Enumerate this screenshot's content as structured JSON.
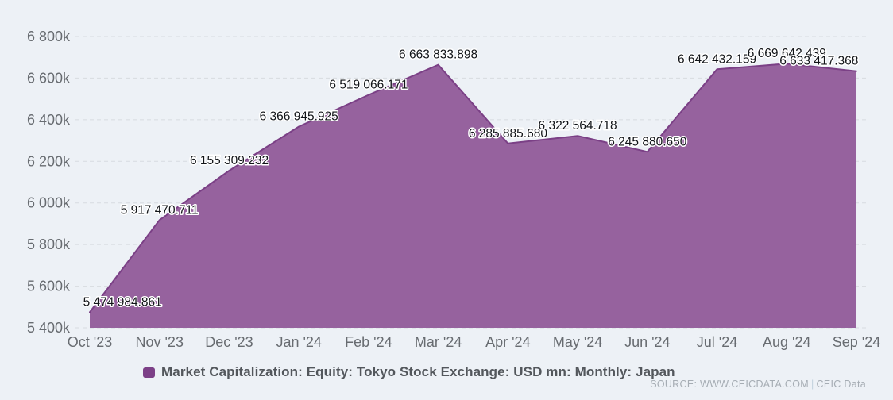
{
  "chart_data": {
    "type": "area",
    "title": "",
    "xlabel": "",
    "ylabel": "",
    "categories": [
      "Oct '23",
      "Nov '23",
      "Dec '23",
      "Jan '24",
      "Feb '24",
      "Mar '24",
      "Apr '24",
      "May '24",
      "Jun '24",
      "Jul '24",
      "Aug '24",
      "Sep '24"
    ],
    "series": [
      {
        "name": "Market Capitalization: Equity: Tokyo Stock Exchange: USD mn: Monthly: Japan",
        "values": [
          5474984.861,
          5917470.711,
          6155309.232,
          6366945.925,
          6519066.171,
          6663833.898,
          6285885.68,
          6322564.718,
          6245880.65,
          6642432.159,
          6669642.439,
          6633417.368
        ],
        "data_labels": [
          "5 474 984.861",
          "5 917 470.711",
          "6 155 309.232",
          "6 366 945.925",
          "6 519 066.171",
          "6 663 833.898",
          "6 285 885.680",
          "6 322 564.718",
          "6 245 880.650",
          "6 642 432.159",
          "6 669 642.439",
          "6 633 417.368"
        ]
      }
    ],
    "ylim": [
      5400000,
      6800000
    ],
    "ytick_interval": 200000,
    "ytick_labels": [
      "5 400k",
      "5 600k",
      "5 800k",
      "6 000k",
      "6 200k",
      "6 400k",
      "6 600k",
      "6 800k"
    ],
    "grid": "horizontal-dashed",
    "legend_position": "bottom"
  },
  "legend": {
    "label": "Market Capitalization: Equity: Tokyo Stock Exchange: USD mn: Monthly: Japan"
  },
  "source": {
    "label": "SOURCE: WWW.CEICDATA.COM",
    "separator": "|",
    "brand": "CEIC Data"
  },
  "colors": {
    "background": "#edf1f6",
    "area_fill": "#96629e",
    "area_line": "#7b4086",
    "legend_swatch": "#7c4087",
    "gridline": "#d7dbe0",
    "axis_label": "#686c71",
    "data_label": "#111418",
    "data_label_halo": "#ffffff",
    "legend_text": "#53575c",
    "source_text": "#a6adb4",
    "source_separator": "#c3d2dd"
  }
}
